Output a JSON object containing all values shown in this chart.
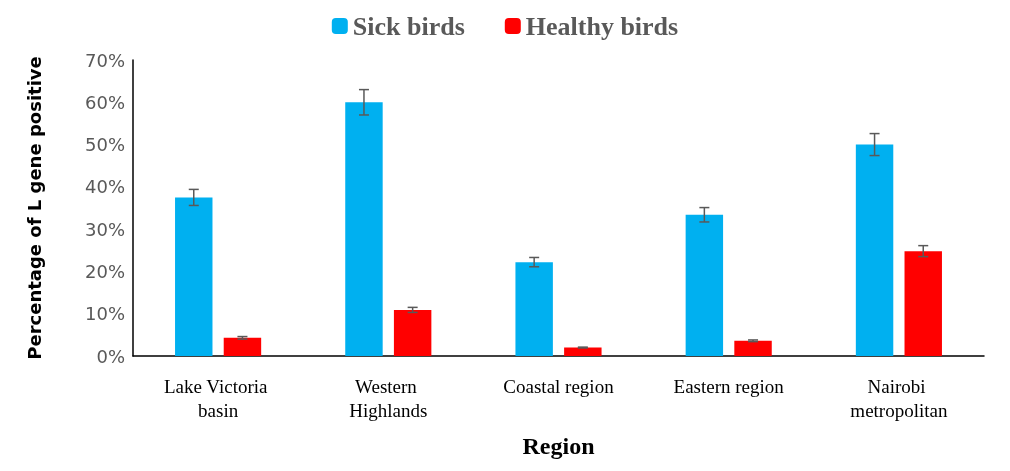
{
  "chart_data": {
    "type": "bar",
    "xlabel": "Region",
    "ylabel": "Percentage of L gene positive",
    "categories": [
      "Lake Victoria basin",
      "Western Highlands",
      "Coastal region",
      "Eastern region",
      "Nairobi metropolitan"
    ],
    "series": [
      {
        "name": "Sick birds",
        "color": "#00b0f0",
        "values": [
          37.5,
          60,
          22.2,
          33.4,
          50
        ],
        "errors": [
          1.9,
          3,
          1.1,
          1.7,
          2.6
        ]
      },
      {
        "name": "Healthy birds",
        "color": "#ff0000",
        "values": [
          4.3,
          10.9,
          2,
          3.6,
          24.8
        ],
        "errors": [
          0.3,
          0.6,
          0.1,
          0.2,
          1.3
        ]
      }
    ],
    "ylim": [
      0,
      70
    ],
    "yticks": [
      {
        "value": 0,
        "label": "0%"
      },
      {
        "value": 10,
        "label": "10%"
      },
      {
        "value": 20,
        "label": "20%"
      },
      {
        "value": 30,
        "label": "30%"
      },
      {
        "value": 40,
        "label": "40%"
      },
      {
        "value": 50,
        "label": "50%"
      },
      {
        "value": 60,
        "label": "60%"
      },
      {
        "value": 70,
        "label": "70%"
      }
    ],
    "grid": false,
    "legend": "top"
  }
}
